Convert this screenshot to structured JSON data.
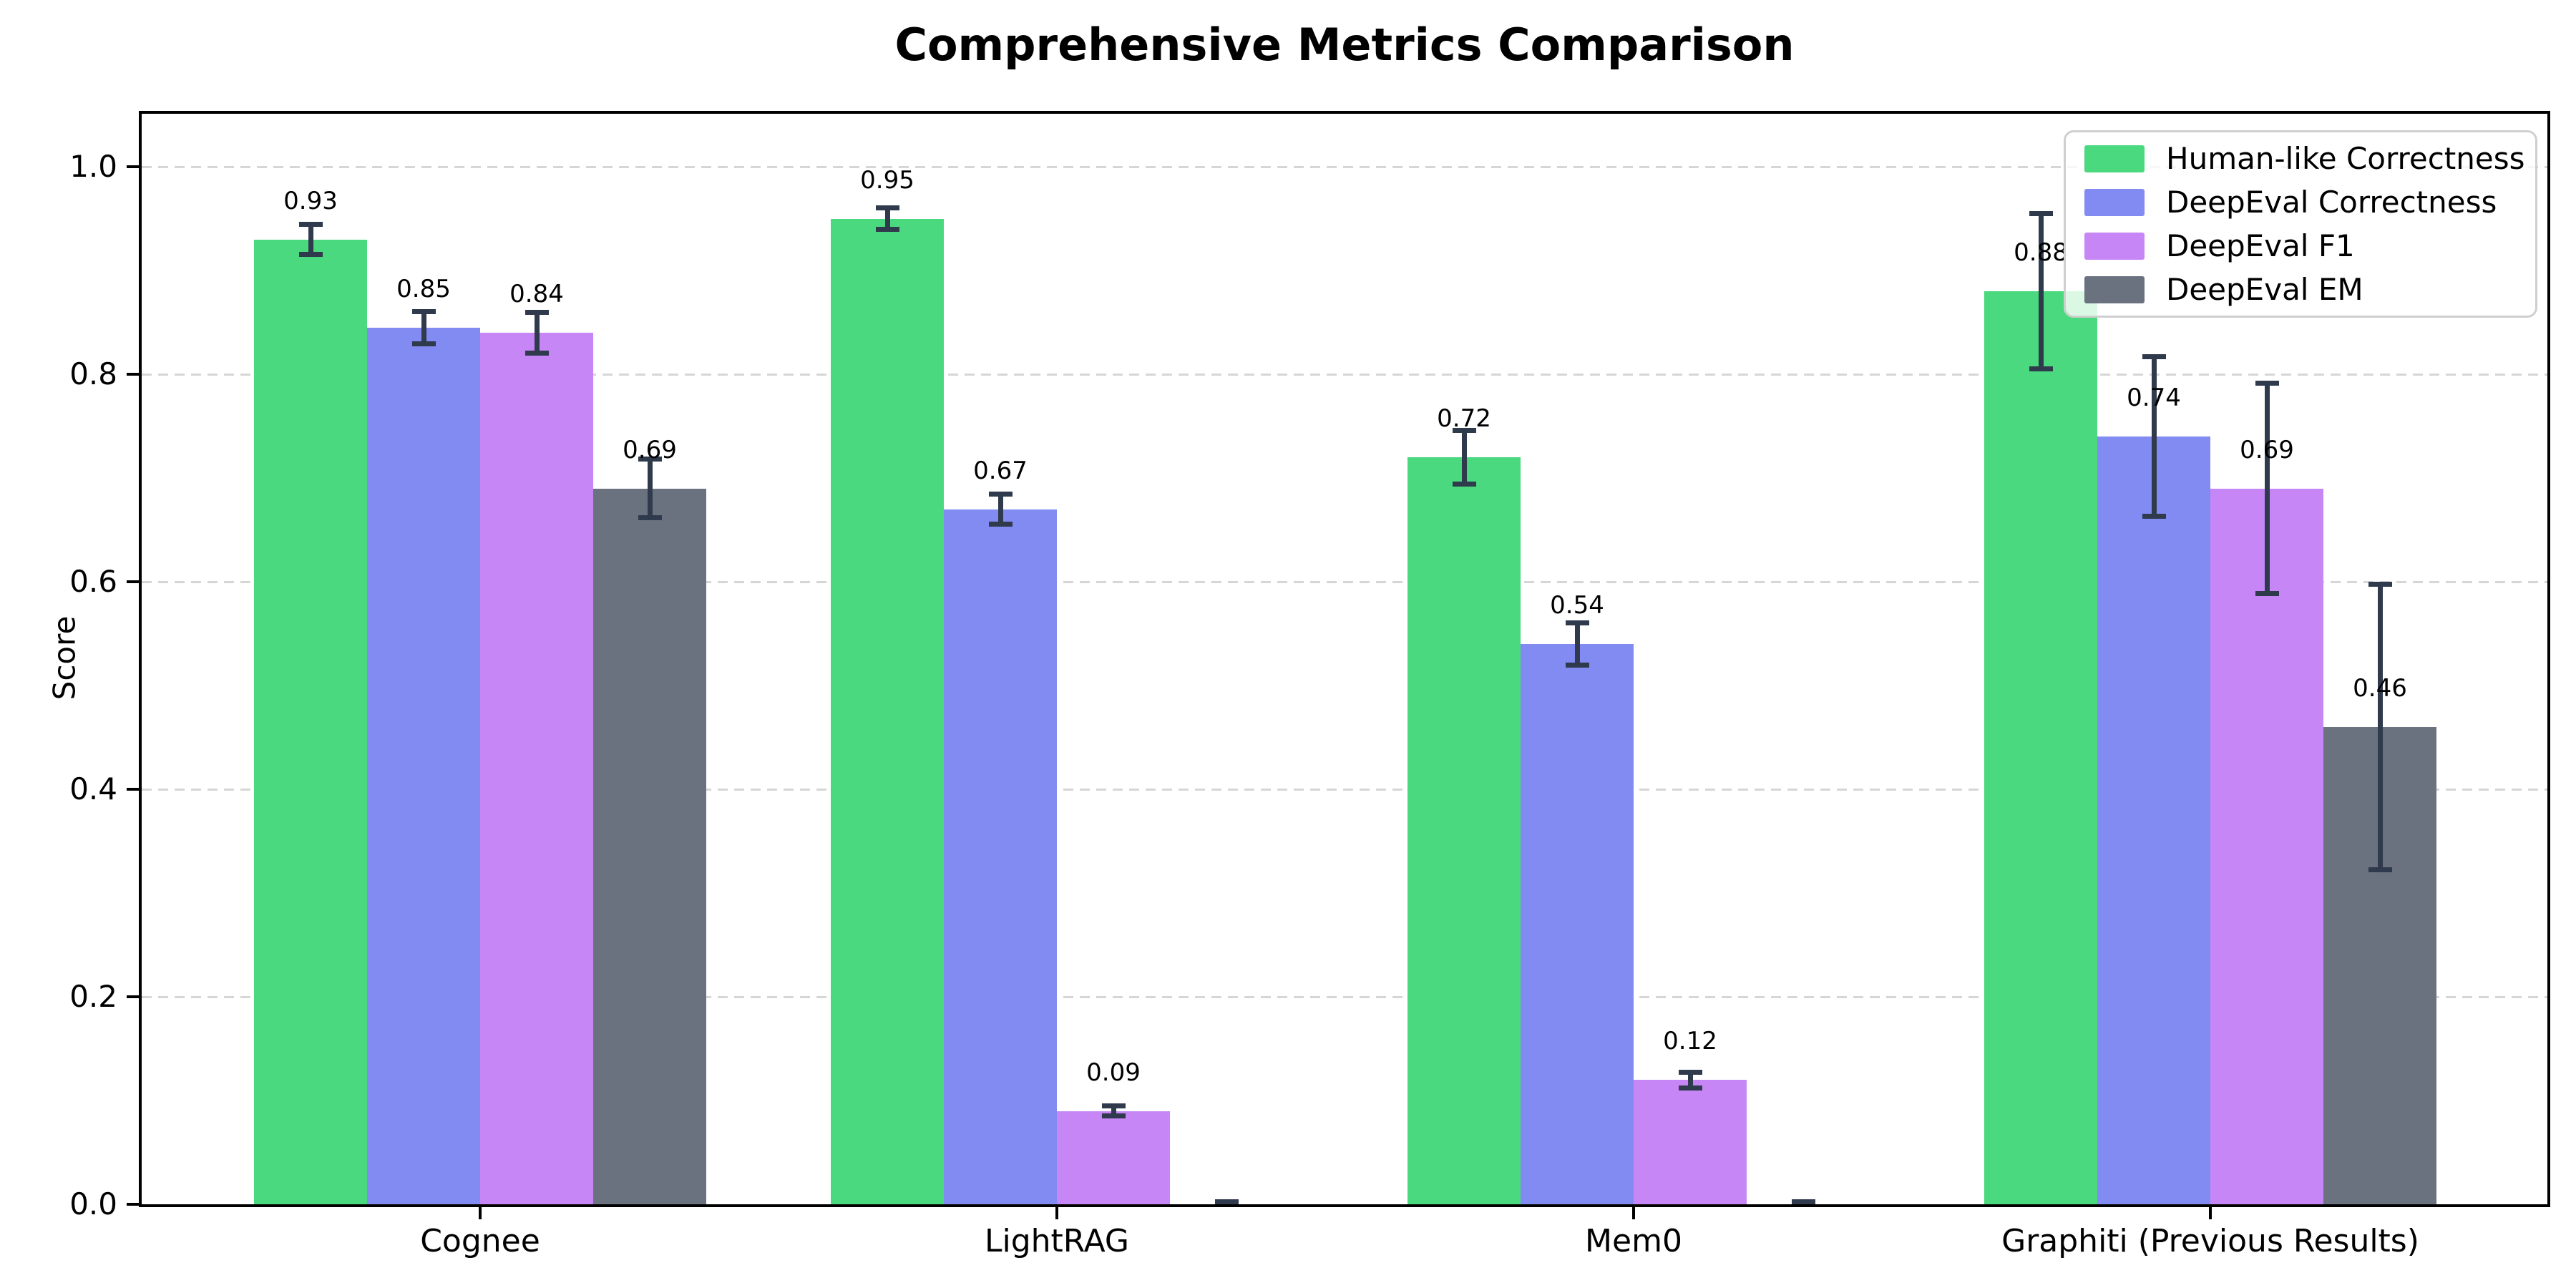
{
  "title": "Comprehensive Metrics Comparison",
  "ylabel": "Score",
  "chart_data": {
    "type": "bar",
    "categories": [
      "Cognee",
      "LightRAG",
      "Mem0",
      "Graphiti (Previous Results)"
    ],
    "series": [
      {
        "name": "Human-like Correctness",
        "color": "#4ad97e",
        "values": [
          0.93,
          0.95,
          0.72,
          0.88
        ],
        "errors": [
          0.017,
          0.013,
          0.028,
          0.077
        ],
        "labels": [
          "0.93",
          "0.95",
          "0.72",
          "0.88"
        ]
      },
      {
        "name": "DeepEval Correctness",
        "color": "#818bf2",
        "values": [
          0.845,
          0.67,
          0.54,
          0.74
        ],
        "errors": [
          0.018,
          0.017,
          0.023,
          0.079
        ],
        "labels": [
          "0.85",
          "0.67",
          "0.54",
          "0.74"
        ]
      },
      {
        "name": "DeepEval F1",
        "color": "#c786f5",
        "values": [
          0.84,
          0.09,
          0.12,
          0.69
        ],
        "errors": [
          0.022,
          0.007,
          0.01,
          0.104
        ],
        "labels": [
          "0.84",
          "0.09",
          "0.12",
          "0.69"
        ]
      },
      {
        "name": "DeepEval EM",
        "color": "#6a7280",
        "values": [
          0.69,
          0.0,
          0.0,
          0.46
        ],
        "errors": [
          0.031,
          0.003,
          0.003,
          0.14
        ],
        "labels": [
          "0.69",
          "",
          "",
          "0.46"
        ]
      }
    ],
    "ylim": [
      0.0,
      1.051
    ],
    "yticks": [
      0.0,
      0.2,
      0.4,
      0.6,
      0.8,
      1.0
    ],
    "ytick_labels": [
      "0.0",
      "0.2",
      "0.4",
      "0.6",
      "0.8",
      "1.0"
    ],
    "grid": "horizontal-dashed",
    "legend_position": "upper-right"
  },
  "colors": {
    "error_bar": "#303a4d",
    "grid": "#d6d6d6",
    "axis": "#000000",
    "legend_border": "#cfcfcf",
    "background": "#ffffff"
  }
}
